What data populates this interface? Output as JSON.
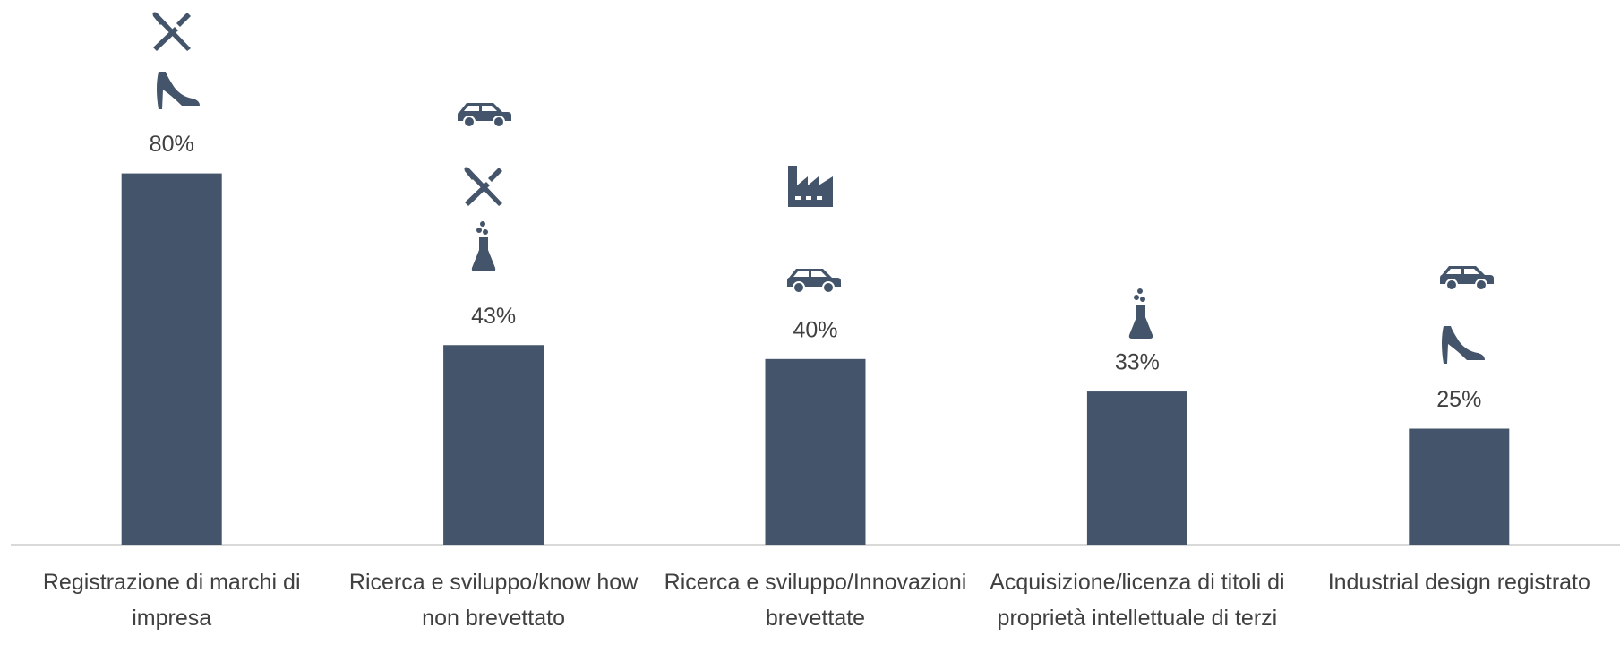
{
  "chart_data": {
    "type": "bar",
    "categories": [
      "Registrazione di marchi di impresa",
      "Ricerca e sviluppo/know how non brevettato",
      "Ricerca e sviluppo/Innovazioni brevettate",
      "Acquisizione/licenza di titoli di proprietà intellettuale di terzi",
      "Industrial design registrato"
    ],
    "values": [
      80,
      43,
      40,
      33,
      25
    ],
    "value_labels": [
      "80%",
      "43%",
      "40%",
      "33%",
      "25%"
    ],
    "color": "#44546a",
    "ylim": [
      0,
      100
    ]
  }
}
